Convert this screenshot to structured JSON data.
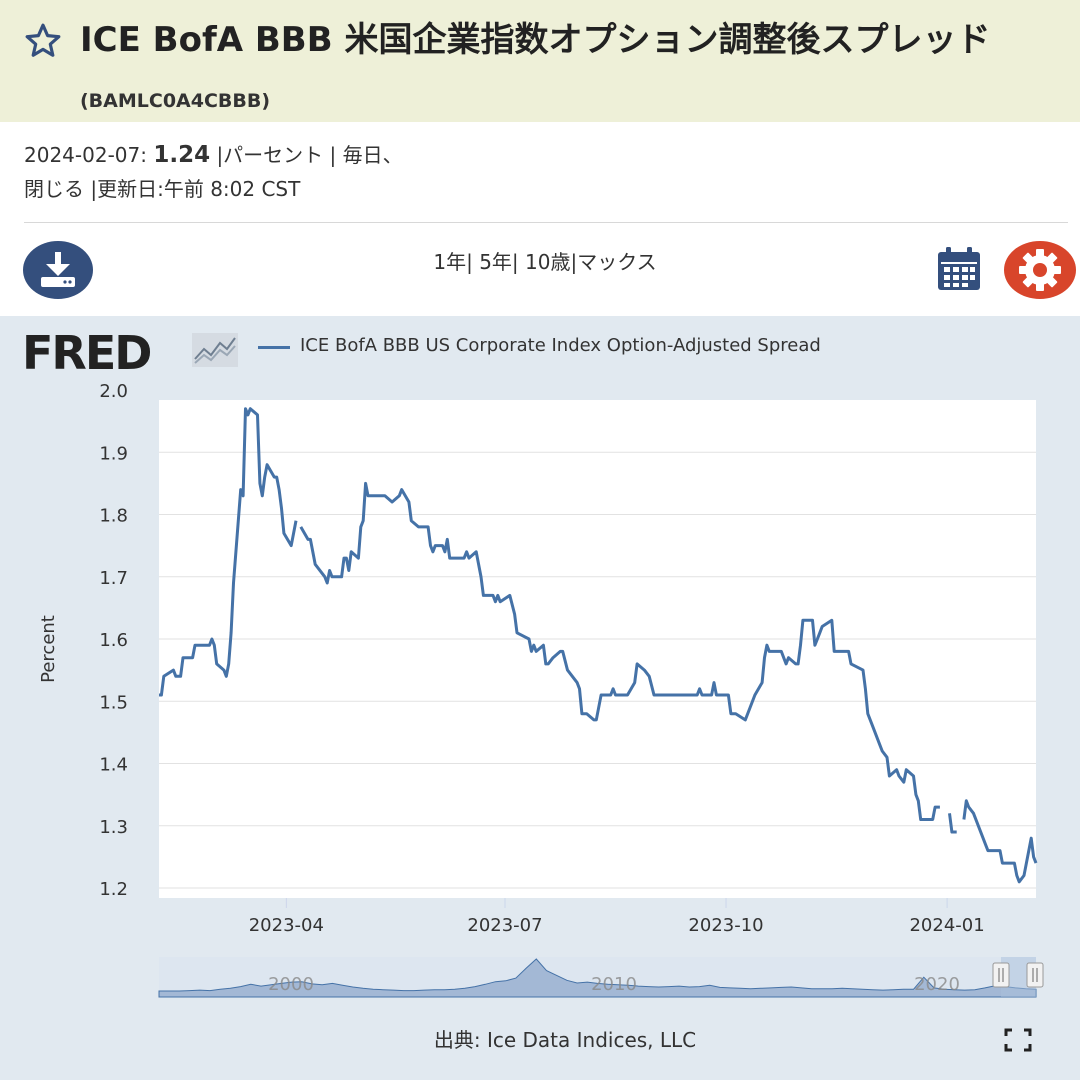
{
  "header": {
    "title": "ICE BofA BBB 米国企業指数オプション調整後スプレッド",
    "series_id": "(BAMLC0A4CBBB)"
  },
  "meta": {
    "date": "2024-02-07:",
    "value": "1.24",
    "line1_rest": "|パーセント | 毎日、",
    "line2": "閉じる |更新日:午前 8:02 CST"
  },
  "toolbar": {
    "range_1y": "1年",
    "range_5y": "5年",
    "range_10y": "10歳",
    "range_max": "マックス",
    "sep": "|"
  },
  "legend": {
    "logo": "FRED",
    "series_name": "ICE BofA BBB US Corporate Index Option-Adjusted Spread",
    "series_color": "#4572a7"
  },
  "footer": {
    "source": "出典: Ice Data Indices, LLC"
  },
  "icons": [
    "star-icon",
    "download-icon",
    "calendar-icon",
    "gear-icon",
    "fred-chart-icon",
    "fullscreen-icon"
  ],
  "chart_data": {
    "type": "line",
    "ylabel": "Percent",
    "ylim": [
      1.2,
      2.0
    ],
    "yticks": [
      "2.0",
      "1.9",
      "1.8",
      "1.7",
      "1.6",
      "1.5",
      "1.4",
      "1.3",
      "1.2"
    ],
    "xlim": [
      "2023-02-07",
      "2024-02-07"
    ],
    "xticks": [
      {
        "date": "2023-04-01",
        "label": "2023-04"
      },
      {
        "date": "2023-07-01",
        "label": "2023-07"
      },
      {
        "date": "2023-10-01",
        "label": "2023-10"
      },
      {
        "date": "2024-01-01",
        "label": "2024-01"
      }
    ],
    "grid": true,
    "series": [
      {
        "name": "ICE BofA BBB US Corporate Index Option-Adjusted Spread",
        "color": "#4572a7",
        "segments": [
          [
            [
              "2023-02-07",
              1.51
            ],
            [
              "2023-02-08",
              1.51
            ],
            [
              "2023-02-09",
              1.54
            ],
            [
              "2023-02-13",
              1.55
            ],
            [
              "2023-02-14",
              1.54
            ],
            [
              "2023-02-16",
              1.54
            ],
            [
              "2023-02-17",
              1.57
            ],
            [
              "2023-02-21",
              1.57
            ],
            [
              "2023-02-22",
              1.59
            ],
            [
              "2023-02-28",
              1.59
            ],
            [
              "2023-03-01",
              1.6
            ],
            [
              "2023-03-02",
              1.59
            ],
            [
              "2023-03-03",
              1.56
            ],
            [
              "2023-03-06",
              1.55
            ],
            [
              "2023-03-07",
              1.54
            ],
            [
              "2023-03-08",
              1.56
            ],
            [
              "2023-03-09",
              1.61
            ],
            [
              "2023-03-10",
              1.69
            ],
            [
              "2023-03-13",
              1.84
            ],
            [
              "2023-03-14",
              1.83
            ],
            [
              "2023-03-15",
              1.97
            ],
            [
              "2023-03-16",
              1.96
            ],
            [
              "2023-03-17",
              1.97
            ],
            [
              "2023-03-20",
              1.96
            ],
            [
              "2023-03-21",
              1.85
            ],
            [
              "2023-03-22",
              1.83
            ],
            [
              "2023-03-23",
              1.86
            ],
            [
              "2023-03-24",
              1.88
            ],
            [
              "2023-03-27",
              1.86
            ],
            [
              "2023-03-28",
              1.86
            ],
            [
              "2023-03-29",
              1.84
            ],
            [
              "2023-03-30",
              1.81
            ],
            [
              "2023-03-31",
              1.77
            ],
            [
              "2023-04-03",
              1.75
            ],
            [
              "2023-04-04",
              1.77
            ],
            [
              "2023-04-05",
              1.79
            ]
          ],
          [
            [
              "2023-04-07",
              1.78
            ],
            [
              "2023-04-10",
              1.76
            ],
            [
              "2023-04-11",
              1.76
            ],
            [
              "2023-04-12",
              1.74
            ],
            [
              "2023-04-13",
              1.72
            ],
            [
              "2023-04-17",
              1.7
            ],
            [
              "2023-04-18",
              1.69
            ],
            [
              "2023-04-19",
              1.71
            ],
            [
              "2023-04-20",
              1.7
            ],
            [
              "2023-04-24",
              1.7
            ],
            [
              "2023-04-25",
              1.73
            ],
            [
              "2023-04-26",
              1.73
            ],
            [
              "2023-04-27",
              1.71
            ],
            [
              "2023-04-28",
              1.74
            ],
            [
              "2023-05-01",
              1.73
            ],
            [
              "2023-05-02",
              1.78
            ],
            [
              "2023-05-03",
              1.79
            ],
            [
              "2023-05-04",
              1.85
            ],
            [
              "2023-05-05",
              1.83
            ],
            [
              "2023-05-12",
              1.83
            ],
            [
              "2023-05-15",
              1.82
            ],
            [
              "2023-05-18",
              1.83
            ],
            [
              "2023-05-19",
              1.84
            ],
            [
              "2023-05-22",
              1.82
            ],
            [
              "2023-05-23",
              1.79
            ],
            [
              "2023-05-26",
              1.78
            ],
            [
              "2023-05-30",
              1.78
            ],
            [
              "2023-05-31",
              1.75
            ],
            [
              "2023-06-01",
              1.74
            ],
            [
              "2023-06-02",
              1.75
            ],
            [
              "2023-06-05",
              1.75
            ],
            [
              "2023-06-06",
              1.74
            ],
            [
              "2023-06-07",
              1.76
            ],
            [
              "2023-06-08",
              1.73
            ],
            [
              "2023-06-14",
              1.73
            ],
            [
              "2023-06-15",
              1.74
            ],
            [
              "2023-06-16",
              1.73
            ],
            [
              "2023-06-19",
              1.74
            ],
            [
              "2023-06-20",
              1.72
            ],
            [
              "2023-06-21",
              1.7
            ],
            [
              "2023-06-22",
              1.67
            ],
            [
              "2023-06-26",
              1.67
            ],
            [
              "2023-06-27",
              1.66
            ],
            [
              "2023-06-28",
              1.67
            ],
            [
              "2023-06-29",
              1.66
            ],
            [
              "2023-07-03",
              1.67
            ],
            [
              "2023-07-05",
              1.64
            ],
            [
              "2023-07-06",
              1.61
            ],
            [
              "2023-07-11",
              1.6
            ],
            [
              "2023-07-12",
              1.58
            ],
            [
              "2023-07-13",
              1.59
            ],
            [
              "2023-07-14",
              1.58
            ],
            [
              "2023-07-17",
              1.59
            ],
            [
              "2023-07-18",
              1.56
            ],
            [
              "2023-07-19",
              1.56
            ],
            [
              "2023-07-21",
              1.57
            ],
            [
              "2023-07-24",
              1.58
            ],
            [
              "2023-07-25",
              1.58
            ],
            [
              "2023-07-27",
              1.55
            ],
            [
              "2023-07-31",
              1.53
            ],
            [
              "2023-08-01",
              1.52
            ],
            [
              "2023-08-02",
              1.48
            ],
            [
              "2023-08-04",
              1.48
            ],
            [
              "2023-08-07",
              1.47
            ],
            [
              "2023-08-08",
              1.47
            ],
            [
              "2023-08-10",
              1.51
            ],
            [
              "2023-08-14",
              1.51
            ],
            [
              "2023-08-15",
              1.52
            ],
            [
              "2023-08-16",
              1.51
            ],
            [
              "2023-08-21",
              1.51
            ],
            [
              "2023-08-24",
              1.53
            ],
            [
              "2023-08-25",
              1.56
            ],
            [
              "2023-08-28",
              1.55
            ],
            [
              "2023-08-30",
              1.54
            ],
            [
              "2023-09-01",
              1.51
            ],
            [
              "2023-09-06",
              1.51
            ],
            [
              "2023-09-08",
              1.51
            ],
            [
              "2023-09-15",
              1.51
            ],
            [
              "2023-09-19",
              1.51
            ],
            [
              "2023-09-20",
              1.52
            ],
            [
              "2023-09-21",
              1.51
            ],
            [
              "2023-09-25",
              1.51
            ],
            [
              "2023-09-26",
              1.53
            ],
            [
              "2023-09-27",
              1.51
            ],
            [
              "2023-10-02",
              1.51
            ],
            [
              "2023-10-03",
              1.48
            ],
            [
              "2023-10-05",
              1.48
            ],
            [
              "2023-10-09",
              1.47
            ],
            [
              "2023-10-11",
              1.49
            ],
            [
              "2023-10-13",
              1.51
            ],
            [
              "2023-10-16",
              1.53
            ],
            [
              "2023-10-17",
              1.57
            ],
            [
              "2023-10-18",
              1.59
            ],
            [
              "2023-10-19",
              1.58
            ],
            [
              "2023-10-24",
              1.58
            ],
            [
              "2023-10-25",
              1.57
            ],
            [
              "2023-10-26",
              1.56
            ],
            [
              "2023-10-27",
              1.57
            ],
            [
              "2023-10-30",
              1.56
            ],
            [
              "2023-10-31",
              1.56
            ],
            [
              "2023-11-01",
              1.59
            ],
            [
              "2023-11-02",
              1.63
            ],
            [
              "2023-11-06",
              1.63
            ],
            [
              "2023-11-07",
              1.59
            ],
            [
              "2023-11-08",
              1.6
            ],
            [
              "2023-11-09",
              1.61
            ],
            [
              "2023-11-10",
              1.62
            ],
            [
              "2023-11-14",
              1.63
            ],
            [
              "2023-11-15",
              1.58
            ],
            [
              "2023-11-21",
              1.58
            ],
            [
              "2023-11-22",
              1.56
            ],
            [
              "2023-11-27",
              1.55
            ],
            [
              "2023-11-28",
              1.52
            ],
            [
              "2023-11-29",
              1.48
            ],
            [
              "2023-12-01",
              1.46
            ],
            [
              "2023-12-04",
              1.43
            ],
            [
              "2023-12-05",
              1.42
            ],
            [
              "2023-12-07",
              1.41
            ],
            [
              "2023-12-08",
              1.38
            ],
            [
              "2023-12-11",
              1.39
            ],
            [
              "2023-12-12",
              1.38
            ],
            [
              "2023-12-14",
              1.37
            ],
            [
              "2023-12-15",
              1.39
            ],
            [
              "2023-12-18",
              1.38
            ],
            [
              "2023-12-19",
              1.35
            ],
            [
              "2023-12-20",
              1.34
            ],
            [
              "2023-12-21",
              1.31
            ],
            [
              "2023-12-26",
              1.31
            ],
            [
              "2023-12-27",
              1.33
            ],
            [
              "2023-12-29",
              1.33
            ]
          ],
          [
            [
              "2024-01-02",
              1.32
            ],
            [
              "2024-01-03",
              1.29
            ],
            [
              "2024-01-05",
              1.29
            ]
          ],
          [
            [
              "2024-01-08",
              1.31
            ],
            [
              "2024-01-09",
              1.34
            ],
            [
              "2024-01-10",
              1.33
            ],
            [
              "2024-01-12",
              1.32
            ],
            [
              "2024-01-16",
              1.28
            ],
            [
              "2024-01-17",
              1.27
            ],
            [
              "2024-01-18",
              1.26
            ],
            [
              "2024-01-23",
              1.26
            ],
            [
              "2024-01-24",
              1.24
            ],
            [
              "2024-01-29",
              1.24
            ],
            [
              "2024-01-30",
              1.22
            ],
            [
              "2024-01-31",
              1.21
            ],
            [
              "2024-02-02",
              1.22
            ],
            [
              "2024-02-05",
              1.28
            ],
            [
              "2024-02-06",
              1.25
            ],
            [
              "2024-02-07",
              1.24
            ]
          ]
        ]
      }
    ],
    "navigator": {
      "labels": [
        "2000",
        "2010",
        "2020"
      ],
      "values": [
        0.9,
        0.9,
        0.9,
        1.0,
        1.1,
        1.0,
        1.3,
        1.5,
        1.9,
        2.4,
        2.0,
        2.3,
        2.6,
        2.9,
        3.0,
        2.5,
        2.3,
        2.6,
        2.2,
        1.8,
        1.5,
        1.3,
        1.2,
        1.1,
        1.0,
        1.0,
        1.1,
        1.2,
        1.2,
        1.3,
        1.5,
        1.9,
        2.4,
        3.0,
        3.2,
        3.8,
        6.0,
        8.1,
        5.5,
        4.4,
        3.3,
        2.7,
        2.9,
        2.6,
        2.4,
        2.3,
        2.2,
        2.0,
        1.9,
        1.8,
        1.9,
        2.0,
        1.8,
        1.9,
        2.2,
        1.7,
        1.6,
        1.5,
        1.4,
        1.5,
        1.6,
        1.7,
        1.8,
        1.6,
        1.4,
        1.4,
        1.4,
        1.5,
        1.4,
        1.3,
        1.2,
        1.1,
        1.2,
        1.3,
        1.3,
        4.0,
        1.6,
        1.3,
        1.2,
        1.1,
        1.2,
        1.6,
        2.1,
        1.9,
        1.6,
        1.4,
        1.3
      ]
    }
  }
}
